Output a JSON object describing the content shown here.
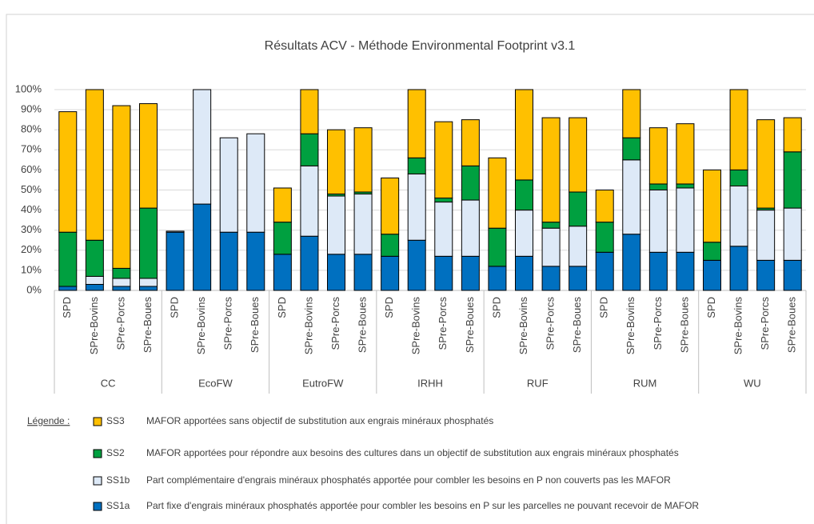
{
  "chart_data": {
    "type": "stacked-bar",
    "title": "Résultats ACV - Méthode Environmental Footprint v3.1",
    "groups": [
      "CC",
      "EcoFW",
      "EutroFW",
      "IRHH",
      "RUF",
      "RUM",
      "WU"
    ],
    "categories": [
      "SPD",
      "SPre-Bovins",
      "SPre-Porcs",
      "SPre-Boues",
      "SPD",
      "SPre-Bovins",
      "SPre-Porcs",
      "SPre-Boues",
      "SPD",
      "SPre-Bovins",
      "SPre-Porcs",
      "SPre-Boues",
      "SPD",
      "SPre-Bovins",
      "SPre-Porcs",
      "SPre-Boues",
      "SPD",
      "SPre-Bovins",
      "SPre-Porcs",
      "SPre-Boues",
      "SPD",
      "SPre-Bovins",
      "SPre-Porcs",
      "SPre-Boues",
      "SPD",
      "SPre-Bovins",
      "SPre-Porcs",
      "SPre-Boues"
    ],
    "series": [
      {
        "name": "SS1a",
        "color": "#0070c0",
        "description": "Part fixe d'engrais minéraux phosphatés apportée pour combler les besoins en P sur les parcelles ne pouvant recevoir de MAFOR",
        "values": [
          2,
          3,
          2,
          2,
          29,
          43,
          29,
          29,
          18,
          27,
          18,
          18,
          17,
          25,
          17,
          17,
          12,
          17,
          12,
          12,
          19,
          28,
          19,
          19,
          15,
          22,
          15,
          15
        ]
      },
      {
        "name": "SS1b",
        "color": "#dde9f7",
        "description": "Part complémentaire d'engrais minéraux phosphatés apportée pour combler les besoins en P non couverts pas les MAFOR",
        "values": [
          0,
          4,
          4,
          4,
          0.5,
          57,
          47,
          49,
          0,
          35,
          29,
          30,
          0,
          33,
          27,
          28,
          0,
          23,
          19,
          20,
          0,
          37,
          31,
          32,
          0,
          30,
          25,
          26
        ]
      },
      {
        "name": "SS2",
        "color": "#00a040",
        "description": "MAFOR apportées pour répondre aux besoins des cultures dans un objectif de substitution aux engrais minéraux phosphatés",
        "values": [
          27,
          18,
          5,
          35,
          0,
          0,
          0,
          0,
          16,
          16,
          1,
          1,
          11,
          8,
          2,
          17,
          19,
          15,
          3,
          17,
          15,
          11,
          3,
          2,
          9,
          8,
          1,
          28
        ]
      },
      {
        "name": "SS3",
        "color": "#ffc000",
        "description": "MAFOR apportées sans objectif de substitution aux engrais minéraux phosphatés",
        "values": [
          60,
          75,
          81,
          52,
          0,
          0,
          0,
          0,
          17,
          22,
          32,
          32,
          28,
          34,
          38,
          23,
          35,
          45,
          52,
          37,
          16,
          24,
          28,
          30,
          36,
          40,
          44,
          17
        ]
      }
    ],
    "legend_label": "Légende :",
    "ylim": [
      0,
      100
    ],
    "yticks": [
      {
        "value": 0,
        "label": "0%"
      },
      {
        "value": 10,
        "label": "10%"
      },
      {
        "value": 20,
        "label": "20%"
      },
      {
        "value": 30,
        "label": "30%"
      },
      {
        "value": 40,
        "label": "40%"
      },
      {
        "value": 50,
        "label": "50%"
      },
      {
        "value": 60,
        "label": "60%"
      },
      {
        "value": 70,
        "label": "70%"
      },
      {
        "value": 80,
        "label": "80%"
      },
      {
        "value": 90,
        "label": "90%"
      },
      {
        "value": 100,
        "label": "100%"
      }
    ],
    "grid": true
  }
}
